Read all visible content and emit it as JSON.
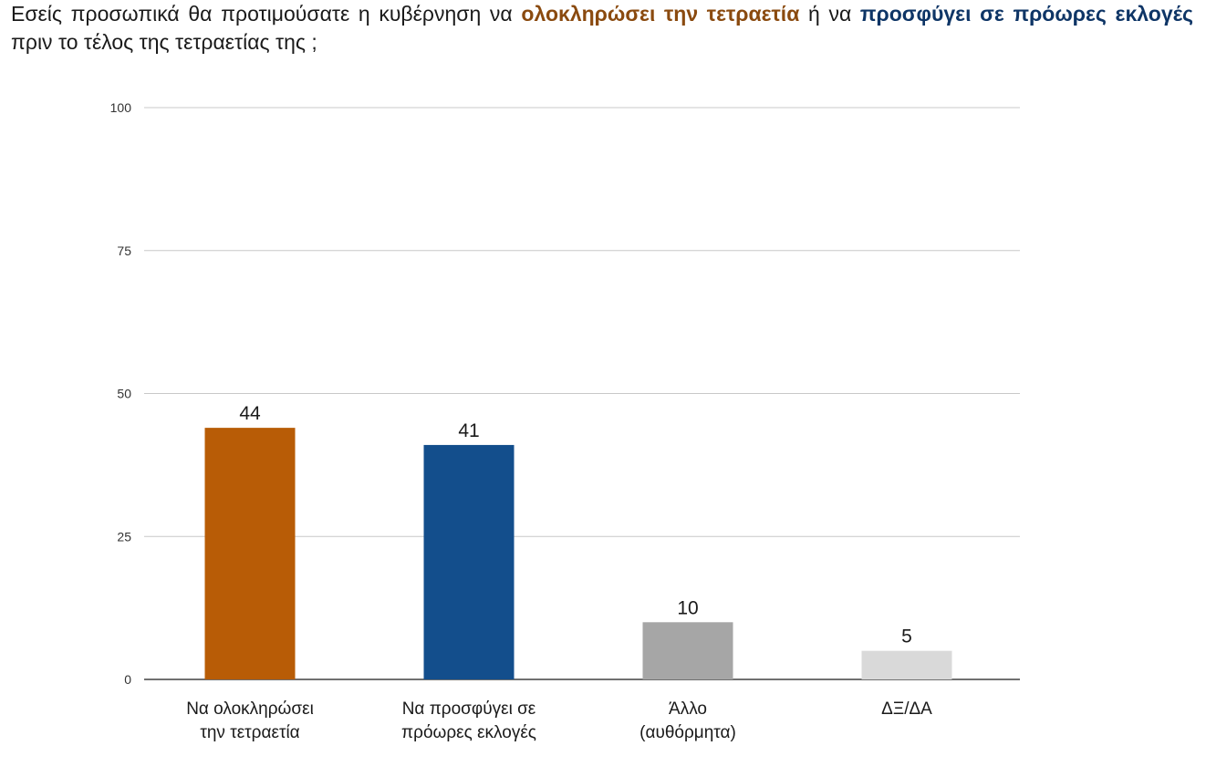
{
  "question": {
    "part1": "Εσείς προσωπικά θα προτιμούσατε η κυβέρνηση να ",
    "accent1": "ολοκληρώσει την τετραετία",
    "part2": " ή να ",
    "accent2": "προσφύγει σε πρόωρες εκλογές",
    "part3": " πριν το τέλος της τετραετίας της ;",
    "accent1_color": "#8a4a0f",
    "accent2_color": "#0e3566"
  },
  "chart_data": {
    "type": "bar",
    "title": "",
    "xlabel": "",
    "ylabel": "",
    "ylim": [
      0,
      100
    ],
    "yticks": [
      0,
      25,
      50,
      75,
      100
    ],
    "grid": true,
    "legend": "none",
    "categories": [
      [
        "Να ολοκληρώσει",
        "την τετραετία"
      ],
      [
        "Να προσφύγει σε",
        "πρόωρες εκλογές"
      ],
      [
        "Άλλο",
        "(αυθόρμητα)"
      ],
      [
        "ΔΞ/ΔΑ"
      ]
    ],
    "values": [
      44,
      41,
      10,
      5
    ],
    "colors": [
      "#b85c06",
      "#134e8c",
      "#a6a6a6",
      "#d9d9d9"
    ],
    "gridline_color": "#c8c8c8",
    "axis_color": "#404040"
  }
}
